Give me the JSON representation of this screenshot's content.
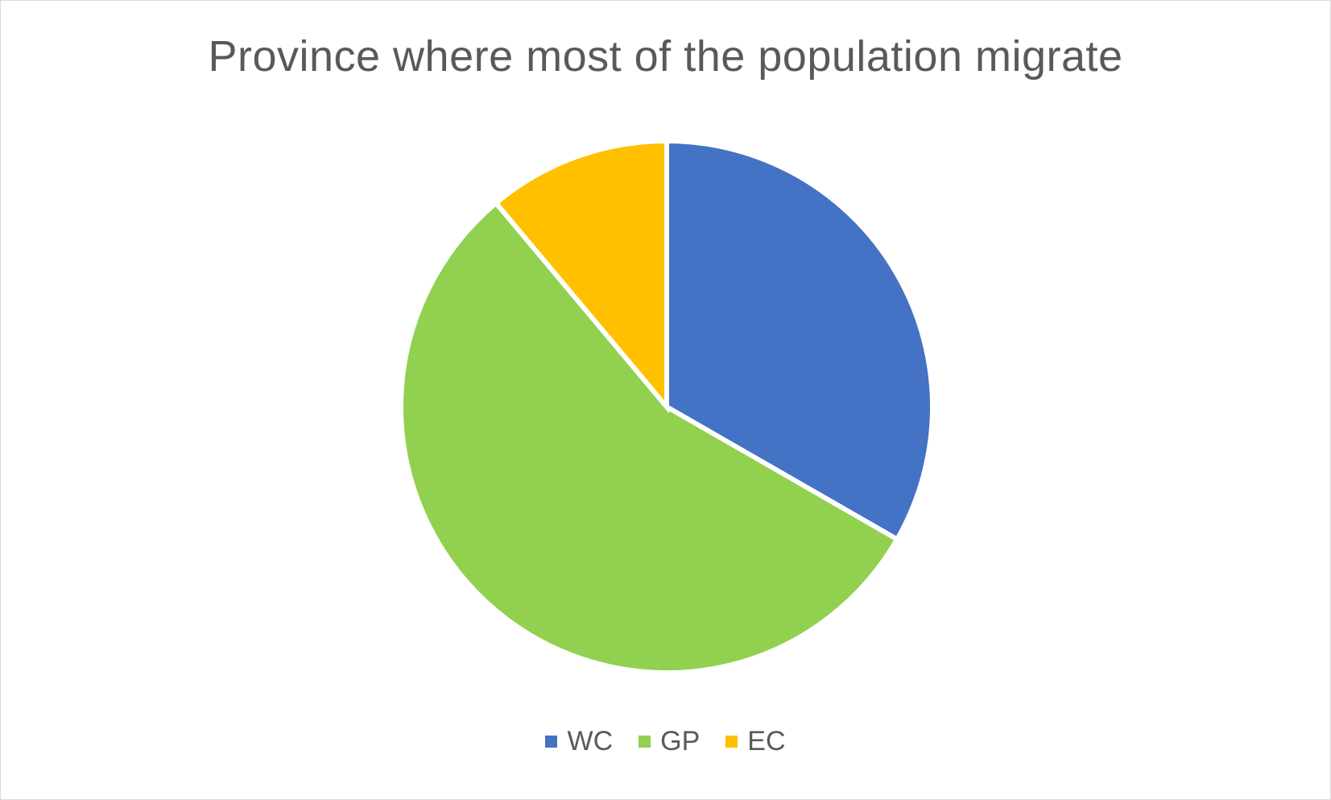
{
  "chart_data": {
    "type": "pie",
    "title": "Province where most of the population migrate",
    "categories": [
      "WC",
      "GP",
      "EC"
    ],
    "values": [
      33.3,
      55.6,
      11.1
    ],
    "colors": [
      "#4472c4",
      "#92d050",
      "#ffc000"
    ],
    "legend_position": "bottom"
  }
}
